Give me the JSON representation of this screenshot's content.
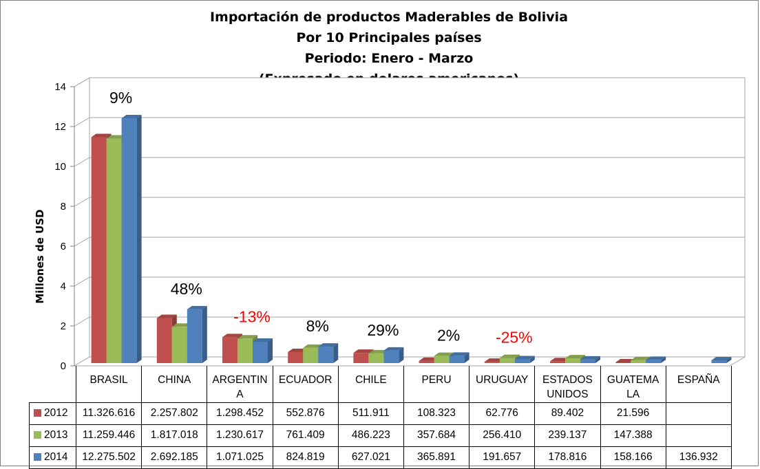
{
  "chart_data": {
    "type": "bar",
    "title": [
      "Importación de productos Maderables de Bolivia",
      "Por 10 Principales países",
      "Periodo: Enero - Marzo",
      "(Expresado en dolares americanos)"
    ],
    "ylabel": "Millones de USD",
    "ylim": [
      0,
      14
    ],
    "yticks": [
      "0",
      "2",
      "4",
      "6",
      "8",
      "10",
      "12",
      "14"
    ],
    "grid": true,
    "legend": "data table below chart",
    "categories": [
      "BRASIL",
      "CHINA",
      "ARGENTINA",
      "ECUADOR",
      "CHILE",
      "PERU",
      "URUGUAY",
      "ESTADOS UNIDOS",
      "GUATEMALA",
      "ESPAÑA"
    ],
    "category_display": [
      "BRASIL",
      "CHINA",
      "ARGENTIN\nA",
      "ECUADOR",
      "CHILE",
      "PERU",
      "URUGUAY",
      "ESTADOS\nUNIDOS",
      "GUATEMA\nLA",
      "ESPAÑA"
    ],
    "series": [
      {
        "name": "2012",
        "color": "#c0504d",
        "values": [
          11.326616,
          2.257802,
          1.298452,
          0.552876,
          0.511911,
          0.108323,
          0.062776,
          0.089402,
          0.021596,
          null
        ],
        "display": [
          "11.326.616",
          "2.257.802",
          "1.298.452",
          "552.876",
          "511.911",
          "108.323",
          "62.776",
          "89.402",
          "21.596",
          ""
        ]
      },
      {
        "name": "2013",
        "color": "#9bbb59",
        "values": [
          11.259446,
          1.817018,
          1.230617,
          0.761409,
          0.486223,
          0.357684,
          0.25641,
          0.239137,
          0.147388,
          null
        ],
        "display": [
          "11.259.446",
          "1.817.018",
          "1.230.617",
          "761.409",
          "486.223",
          "357.684",
          "256.410",
          "239.137",
          "147.388",
          ""
        ]
      },
      {
        "name": "2014",
        "color": "#4f81bd",
        "values": [
          12.275502,
          2.692185,
          1.071025,
          0.824819,
          0.627021,
          0.365891,
          0.191657,
          0.178816,
          0.158166,
          0.136932
        ],
        "display": [
          "12.275.502",
          "2.692.185",
          "1.071.025",
          "824.819",
          "627.021",
          "365.891",
          "191.657",
          "178.816",
          "158.166",
          "136.932"
        ]
      }
    ],
    "annotations": [
      {
        "category": "BRASIL",
        "text": "9%",
        "color": "#000000"
      },
      {
        "category": "CHINA",
        "text": "48%",
        "color": "#000000"
      },
      {
        "category": "ARGENTINA",
        "text": "-13%",
        "color": "#ff0000"
      },
      {
        "category": "ECUADOR",
        "text": "8%",
        "color": "#000000"
      },
      {
        "category": "CHILE",
        "text": "29%",
        "color": "#000000"
      },
      {
        "category": "PERU",
        "text": "2%",
        "color": "#000000"
      },
      {
        "category": "URUGUAY",
        "text": "-25%",
        "color": "#ff0000"
      }
    ]
  }
}
